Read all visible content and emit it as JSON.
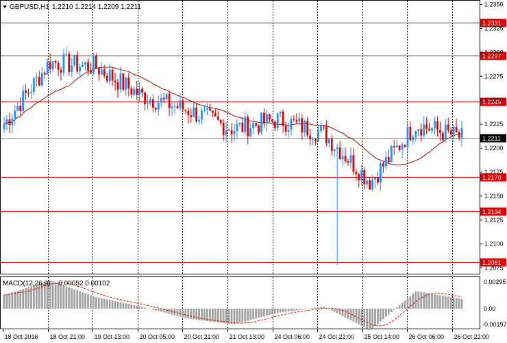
{
  "window": {
    "title": "GBPUSD,H1",
    "ohlc": "1.2210 1.2214 1.2209 1.2211",
    "menu_icon": "triangle-down-icon"
  },
  "macd": {
    "title": "MACD(12,26,9)",
    "values": "-0.00052 0.00102",
    "axis_labels": [
      "0.00295",
      "0.00",
      "-0.00197"
    ]
  },
  "x_axis_labels": [
    "18 Oct 2016",
    "18 Oct 21:00",
    "19 Oct 13:00",
    "20 Oct 05:00",
    "20 Oct 21:00",
    "21 Oct 13:00",
    "24 Oct 06:00",
    "24 Oct 22:00",
    "25 Oct 14:00",
    "26 Oct 06:00",
    "26 Oct 22:00"
  ],
  "y_axis_labels": [
    "1.2350",
    "1.2325",
    "1.2300",
    "1.2275",
    "1.2250",
    "1.2225",
    "1.2200",
    "1.2175",
    "1.2150",
    "1.2125",
    "1.2100",
    "1.2075"
  ],
  "levels": [
    {
      "price": 1.2331,
      "label": "1.2331"
    },
    {
      "price": 1.2297,
      "label": "1.2297"
    },
    {
      "price": 1.2249,
      "label": "1.2249"
    },
    {
      "price": 1.217,
      "label": "1.2170"
    },
    {
      "price": 1.2134,
      "label": "1.2134"
    },
    {
      "price": 1.2081,
      "label": "1.2081"
    }
  ],
  "current_price": {
    "price": 1.2211,
    "label": "1.2211"
  },
  "colors": {
    "bull": "#1e90ff",
    "bear": "#e00000",
    "level": "#e00000",
    "ma": "#b00000",
    "macd_hist": "#a0a0a0",
    "signal": "#e00000",
    "grid": "#000000"
  },
  "chart_data": {
    "type": "line",
    "title": "GBPUSD,H1",
    "ylim": [
      1.2069,
      1.2354
    ],
    "x": [
      "18 Oct 2016",
      "18 Oct 21:00",
      "19 Oct 13:00",
      "20 Oct 05:00",
      "20 Oct 21:00",
      "21 Oct 13:00",
      "24 Oct 06:00",
      "24 Oct 22:00",
      "25 Oct 14:00",
      "26 Oct 06:00",
      "26 Oct 22:00"
    ],
    "series": [
      {
        "values": [
          1.2225,
          1.229,
          1.2285,
          1.2255,
          1.224,
          1.222,
          1.223,
          1.2215,
          1.2165,
          1.2225,
          1.2211
        ]
      }
    ],
    "macd_histogram": {
      "x": [
        "18 Oct 2016",
        "18 Oct 21:00",
        "19 Oct 13:00",
        "20 Oct 05:00",
        "20 Oct 21:00",
        "21 Oct 13:00",
        "24 Oct 06:00",
        "24 Oct 22:00",
        "25 Oct 14:00",
        "26 Oct 06:00",
        "26 Oct 22:00"
      ],
      "values": [
        0.0014,
        0.0029,
        0.0012,
        0.0002,
        -0.001,
        -0.0016,
        -0.0004,
        0.0002,
        -0.0022,
        0.0018,
        0.001
      ]
    }
  }
}
